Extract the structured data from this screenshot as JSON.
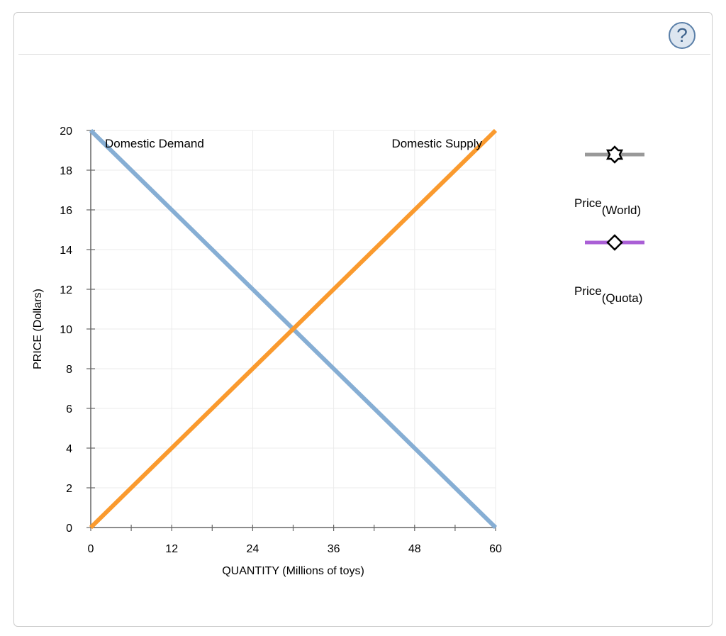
{
  "help_icon": "question-circle-icon",
  "help_label": "?",
  "chart_data": {
    "type": "line",
    "xlabel": "QUANTITY (Millions of toys)",
    "ylabel": "PRICE (Dollars)",
    "xlim": [
      0,
      60
    ],
    "ylim": [
      0,
      20
    ],
    "xticks": [
      0,
      12,
      24,
      36,
      48,
      60
    ],
    "yticks": [
      0,
      2,
      4,
      6,
      8,
      10,
      12,
      14,
      16,
      18,
      20
    ],
    "grid": true,
    "series": [
      {
        "name": "Domestic Demand",
        "color": "#86aed4",
        "points": [
          [
            0,
            20
          ],
          [
            60,
            0
          ]
        ]
      },
      {
        "name": "Domestic Supply",
        "color": "#fa9a2e",
        "points": [
          [
            0,
            0
          ],
          [
            60,
            20
          ]
        ]
      }
    ],
    "legend": {
      "placement": "right",
      "items": [
        {
          "base": "Price",
          "sub": "(World)",
          "color": "#999999",
          "marker": "star"
        },
        {
          "base": "Price",
          "sub": "(Quota)",
          "color": "#aa5fd6",
          "marker": "diamond"
        }
      ]
    }
  }
}
